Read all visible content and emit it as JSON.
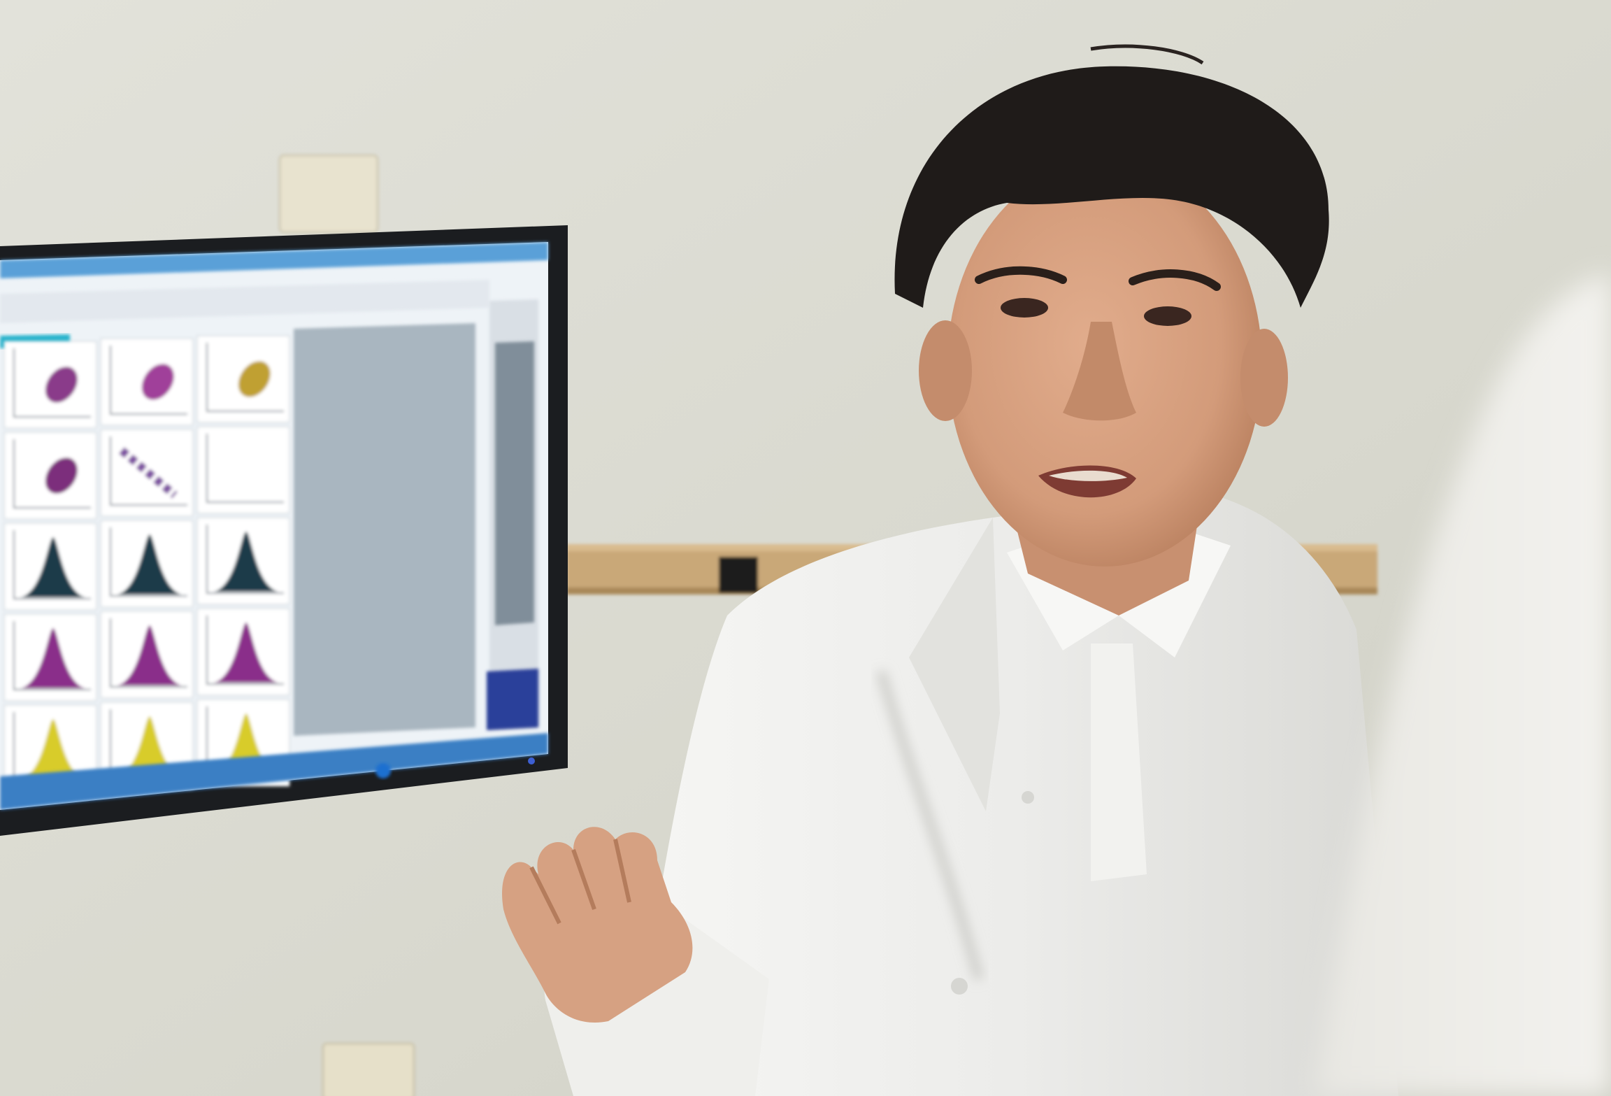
{
  "scene": {
    "description_free": true,
    "colors": {
      "wall": "#dcdcd2",
      "wall_shadow": "#c9c9bf",
      "monitor_bezel": "#1b1d20",
      "screen_bg": "#eef3f7",
      "screen_header": "#2f6fb4",
      "coat": "#f1f1ef",
      "coat_shadow": "#cfcfcb",
      "skin": "#d9a383",
      "skin_shadow": "#b97f5f",
      "hair": "#1f1b19",
      "rail": "#c9a878",
      "foreground_shoulder": "#ecebe6"
    }
  },
  "monitor": {
    "plots": [
      {
        "kind": "scatter",
        "color": "#8a3a8a"
      },
      {
        "kind": "scatter",
        "color": "#a0409a"
      },
      {
        "kind": "scatter",
        "color": "#c0a030"
      },
      {
        "kind": "scatter",
        "color": "#7b2f7b"
      },
      {
        "kind": "diagonal",
        "color": "#7d4fa0"
      },
      {
        "kind": "blank",
        "color": "#ffffff"
      },
      {
        "kind": "histogram",
        "color": "#1e3a4a"
      },
      {
        "kind": "histogram",
        "color": "#1e3a4a"
      },
      {
        "kind": "histogram",
        "color": "#1e3a4a"
      },
      {
        "kind": "histogram",
        "color": "#8a2f8a"
      },
      {
        "kind": "histogram",
        "color": "#8a2f8a"
      },
      {
        "kind": "histogram",
        "color": "#8a2f8a"
      },
      {
        "kind": "histogram",
        "color": "#d8cc2a"
      },
      {
        "kind": "histogram",
        "color": "#d8cc2a"
      },
      {
        "kind": "histogram",
        "color": "#d8cc2a"
      }
    ]
  }
}
